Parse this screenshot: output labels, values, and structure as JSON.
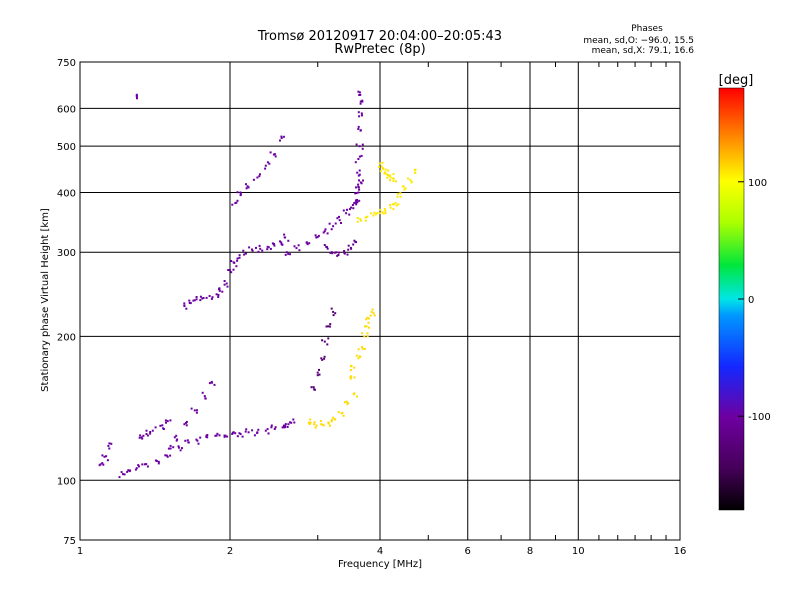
{
  "chart_data": {
    "type": "scatter",
    "title": "Tromsø 20120917 20:04:00–20:05:43",
    "subtitle": "RwPretec (8p)",
    "stats_header": "Phases",
    "stats_line1": "mean, sd,O: −96.0, 15.5",
    "stats_line2": "mean, sd,X: 79.1, 16.6",
    "xlabel": "Frequency [MHz]",
    "ylabel": "Stationary phase Virtual Height [km]",
    "xscale": "log",
    "yscale": "log",
    "xlim": [
      1,
      16
    ],
    "ylim": [
      75,
      750
    ],
    "xticks": [
      1,
      2,
      4,
      6,
      8,
      10,
      16
    ],
    "xtick_labels": [
      "1",
      "2",
      "4",
      "6",
      "8",
      "10",
      "16"
    ],
    "yticks": [
      75,
      100,
      200,
      300,
      400,
      500,
      600,
      750
    ],
    "ytick_labels": [
      "75",
      "100",
      "200",
      "300",
      "400",
      "500",
      "600",
      "750"
    ],
    "grid": true,
    "colorbar": {
      "label": "[deg]",
      "range": [
        -180,
        180
      ],
      "ticks": [
        100,
        0,
        -100
      ],
      "tick_labels": [
        "100",
        "0",
        "-100"
      ]
    },
    "series": [
      {
        "kind": "points",
        "phase": -100,
        "x": [
          1.22,
          1.25,
          1.3,
          1.35,
          1.42,
          1.5,
          1.58,
          1.65,
          1.72,
          1.8,
          1.88,
          1.95,
          2.02,
          2.1,
          2.18,
          2.27,
          2.36,
          2.46,
          2.55,
          2.62,
          2.68
        ],
        "y": [
          103,
          105,
          106,
          108,
          110,
          112,
          117,
          120,
          121,
          123,
          124,
          124,
          125,
          125,
          126,
          126,
          127,
          128,
          129,
          131,
          134
        ]
      },
      {
        "kind": "points",
        "phase": -100,
        "x": [
          1.33,
          1.36,
          1.4,
          1.45,
          1.5
        ],
        "y": [
          123,
          125,
          127,
          130,
          133
        ]
      },
      {
        "kind": "points",
        "phase": -100,
        "x": [
          1.1,
          1.12,
          1.14
        ],
        "y": [
          108,
          112,
          118
        ]
      },
      {
        "kind": "points",
        "phase": -100,
        "x": [
          1.62,
          1.66,
          1.7,
          1.76,
          1.82,
          1.88,
          1.93,
          1.97,
          2.0,
          2.04,
          2.09,
          2.15,
          2.22,
          2.3,
          2.38,
          2.45,
          2.52,
          2.58
        ],
        "y": [
          232,
          235,
          238,
          240,
          243,
          245,
          248,
          258,
          275,
          285,
          292,
          298,
          302,
          305,
          308,
          312,
          316,
          322
        ]
      },
      {
        "kind": "points",
        "phase": -100,
        "x": [
          2.6,
          2.72,
          2.85,
          2.98,
          3.1,
          3.22,
          3.32,
          3.42,
          3.5,
          3.58,
          3.62,
          3.66
        ],
        "y": [
          300,
          306,
          314,
          322,
          332,
          340,
          350,
          362,
          372,
          385,
          400,
          420
        ]
      },
      {
        "kind": "points",
        "phase": -100,
        "x": [
          3.55,
          3.58,
          3.6,
          3.62,
          3.64,
          3.66,
          3.68,
          3.66,
          3.62
        ],
        "y": [
          380,
          410,
          440,
          470,
          500,
          540,
          580,
          620,
          650
        ]
      },
      {
        "kind": "points",
        "phase": -100,
        "x": [
          2.05,
          2.1,
          2.18,
          2.27,
          2.36,
          2.45,
          2.54
        ],
        "y": [
          380,
          395,
          410,
          430,
          455,
          480,
          520
        ]
      },
      {
        "kind": "points",
        "phase": -100,
        "x": [
          1.52,
          1.55,
          1.62,
          1.7,
          1.78,
          1.84
        ],
        "y": [
          118,
          123,
          131,
          140,
          150,
          160
        ]
      },
      {
        "kind": "points",
        "phase": -100,
        "x": [
          1.3
        ],
        "y": [
          635
        ]
      },
      {
        "kind": "points",
        "phase": -110,
        "x": [
          3.12,
          3.2,
          3.3,
          3.4,
          3.5,
          3.58
        ],
        "y": [
          308,
          300,
          296,
          298,
          305,
          315
        ]
      },
      {
        "kind": "points",
        "phase": -125,
        "x": [
          2.95,
          3.0,
          3.05,
          3.1,
          3.15,
          3.22
        ],
        "y": [
          155,
          168,
          180,
          195,
          210,
          225
        ]
      },
      {
        "kind": "points",
        "phase": 112,
        "x": [
          2.88,
          2.95,
          3.05,
          3.15,
          3.25,
          3.35,
          3.45,
          3.55
        ],
        "y": [
          132,
          131,
          131,
          132,
          134,
          138,
          145,
          152
        ]
      },
      {
        "kind": "points",
        "phase": 112,
        "x": [
          3.5,
          3.55,
          3.62,
          3.68,
          3.72,
          3.76,
          3.8,
          3.85
        ],
        "y": [
          165,
          172,
          180,
          190,
          200,
          210,
          218,
          225
        ]
      },
      {
        "kind": "points",
        "phase": 108,
        "x": [
          3.65,
          3.75,
          3.88,
          4.0,
          4.1,
          4.2,
          4.3,
          4.4,
          4.5,
          4.6,
          4.7
        ],
        "y": [
          352,
          355,
          358,
          362,
          366,
          372,
          380,
          392,
          408,
          425,
          445
        ]
      },
      {
        "kind": "points",
        "phase": 108,
        "x": [
          4.0,
          4.05,
          4.1,
          4.15,
          4.2,
          4.25
        ],
        "y": [
          460,
          450,
          440,
          435,
          430,
          428
        ]
      }
    ]
  }
}
